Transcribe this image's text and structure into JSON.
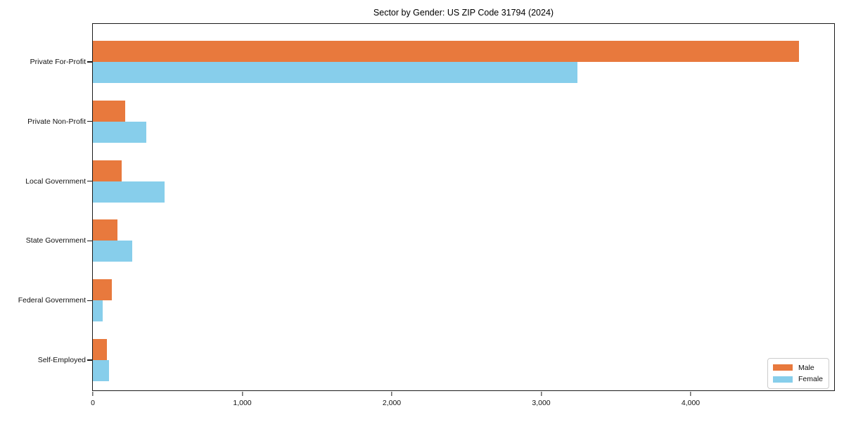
{
  "window": {
    "title": "Sector by Gender: US ZIP Code 31794 (2024)"
  },
  "chart_data": {
    "type": "bar",
    "orientation": "horizontal",
    "title": "Sector by Gender: US ZIP Code 31794 (2024)",
    "categories": [
      "Private For-Profit",
      "Private Non-Profit",
      "Local Government",
      "State Government",
      "Federal Government",
      "Self-Employed"
    ],
    "series": [
      {
        "name": "Male",
        "color": "#E8793D",
        "values": [
          4725,
          215,
          195,
          165,
          125,
          95
        ]
      },
      {
        "name": "Female",
        "color": "#87CEEB",
        "values": [
          3240,
          360,
          480,
          265,
          65,
          110
        ]
      }
    ],
    "xlabel": "",
    "ylabel": "",
    "xlim": [
      0,
      4960
    ],
    "xticks": [
      0,
      1000,
      2000,
      3000,
      4000
    ],
    "xtick_labels": [
      "0",
      "1,000",
      "2,000",
      "3,000",
      "4,000"
    ],
    "grid": false,
    "legend": {
      "position": "lower right",
      "labels": [
        "Male",
        "Female"
      ]
    }
  }
}
